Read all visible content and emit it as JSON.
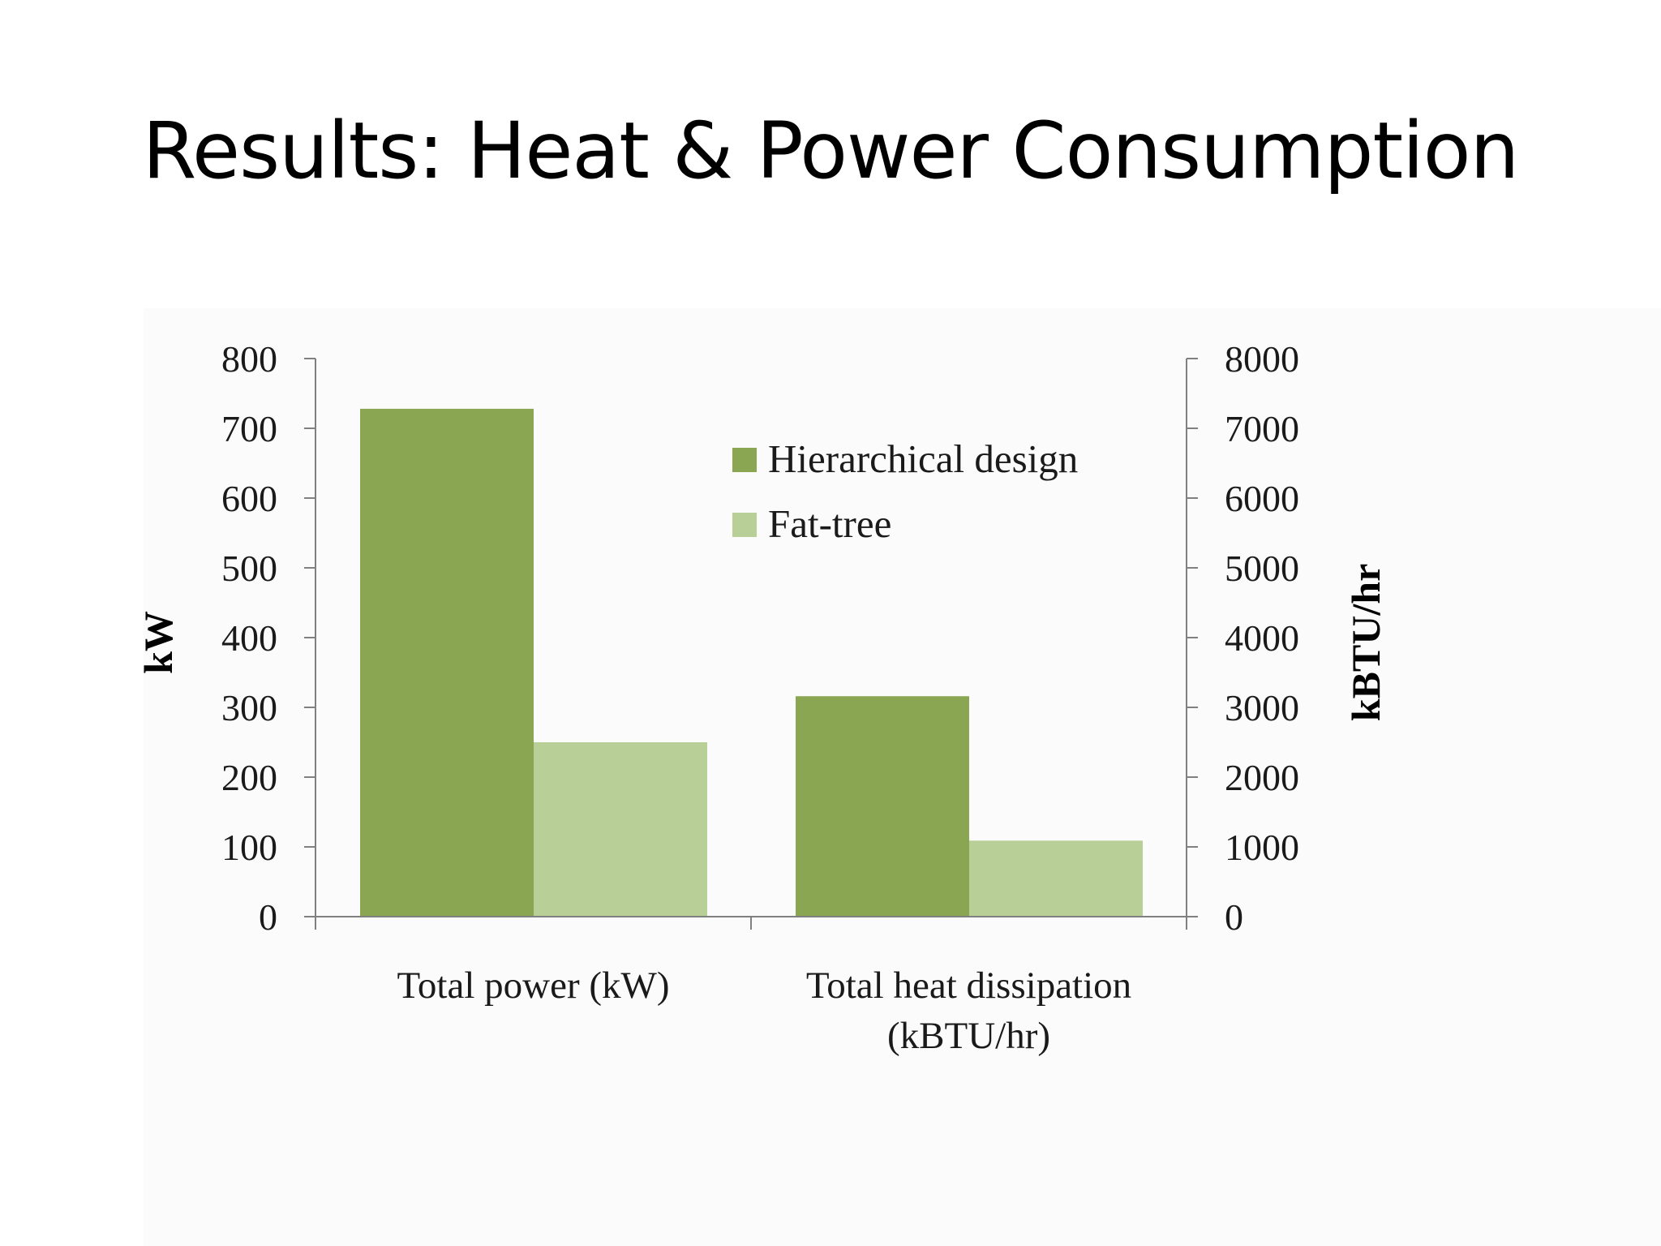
{
  "slide": {
    "title": "Results: Heat & Power Consumption"
  },
  "chart_data": {
    "type": "bar",
    "categories": [
      "Total power (kW)",
      "Total heat dissipation (kBTU/hr)"
    ],
    "category_lines": [
      [
        "Total power (kW)"
      ],
      [
        "Total heat dissipation",
        "(kBTU/hr)"
      ]
    ],
    "series": [
      {
        "name": "Hierarchical design",
        "color": "#8aa653",
        "values": [
          728,
          3160
        ],
        "axis": [
          "left",
          "right"
        ]
      },
      {
        "name": "Fat-tree",
        "color": "#b8cf97",
        "values": [
          250,
          1090
        ],
        "axis": [
          "left",
          "right"
        ]
      }
    ],
    "y_left": {
      "label": "kW",
      "ylim": [
        0,
        800
      ],
      "ticks": [
        0,
        100,
        200,
        300,
        400,
        500,
        600,
        700,
        800
      ]
    },
    "y_right": {
      "label": "kBTU/hr",
      "ylim": [
        0,
        8000
      ],
      "ticks": [
        0,
        1000,
        2000,
        3000,
        4000,
        5000,
        6000,
        7000,
        8000
      ]
    },
    "legend_position": "top-right",
    "grid": false,
    "axis_color": "#808080"
  }
}
